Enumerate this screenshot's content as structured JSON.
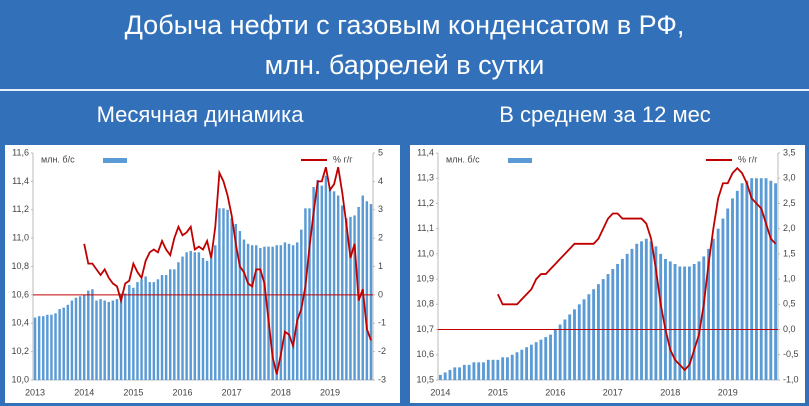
{
  "header": {
    "title_lines": [
      "Добыча нефти с газовым конденсатом в РФ,",
      "млн. баррелей в сутки"
    ]
  },
  "chart_data": [
    {
      "type": "combo",
      "title": "Месячная динамика",
      "categories": [
        "2013",
        null,
        null,
        null,
        null,
        null,
        null,
        null,
        null,
        null,
        null,
        null,
        "2014",
        null,
        null,
        null,
        null,
        null,
        null,
        null,
        null,
        null,
        null,
        null,
        "2015",
        null,
        null,
        null,
        null,
        null,
        null,
        null,
        null,
        null,
        null,
        null,
        "2016",
        null,
        null,
        null,
        null,
        null,
        null,
        null,
        null,
        null,
        null,
        null,
        "2017",
        null,
        null,
        null,
        null,
        null,
        null,
        null,
        null,
        null,
        null,
        null,
        "2018",
        null,
        null,
        null,
        null,
        null,
        null,
        null,
        null,
        null,
        null,
        null,
        "2019",
        null,
        null,
        null,
        null,
        null,
        null,
        null,
        null,
        null,
        null
      ],
      "series": [
        {
          "name": "млн. б/с",
          "color": "#5b9bd5",
          "axis": "y",
          "values": [
            10.44,
            10.45,
            10.45,
            10.46,
            10.46,
            10.47,
            10.5,
            10.51,
            10.53,
            10.56,
            10.58,
            10.59,
            10.6,
            10.63,
            10.64,
            10.56,
            10.57,
            10.56,
            10.55,
            10.56,
            10.57,
            10.61,
            10.61,
            10.67,
            10.65,
            10.69,
            10.71,
            10.73,
            10.69,
            10.69,
            10.71,
            10.74,
            10.74,
            10.78,
            10.78,
            10.83,
            10.87,
            10.9,
            10.91,
            10.9,
            10.9,
            10.86,
            10.84,
            10.86,
            10.95,
            11.21,
            11.21,
            11.2,
            11.14,
            11.1,
            11.05,
            10.99,
            10.96,
            10.95,
            10.95,
            10.93,
            10.94,
            10.94,
            10.94,
            10.95,
            10.95,
            10.97,
            10.96,
            10.95,
            10.97,
            11.06,
            11.21,
            11.21,
            11.36,
            11.41,
            11.37,
            11.44,
            11.36,
            11.33,
            11.3,
            11.23,
            11.14,
            11.15,
            11.16,
            11.22,
            11.3,
            11.26,
            11.24
          ]
        },
        {
          "name": "% г/г",
          "color": "#c00000",
          "axis": "y2",
          "values": [
            null,
            null,
            null,
            null,
            null,
            null,
            null,
            null,
            null,
            null,
            null,
            null,
            1.8,
            1.1,
            1.1,
            0.9,
            0.7,
            0.9,
            0.6,
            0.4,
            0.3,
            -0.2,
            0.4,
            0.5,
            1.1,
            0.8,
            0.6,
            1.2,
            1.5,
            1.6,
            1.5,
            1.9,
            1.6,
            1.4,
            2.0,
            2.4,
            2.1,
            2.2,
            2.4,
            1.6,
            1.7,
            1.6,
            1.9,
            1.3,
            2.4,
            4.3,
            4.0,
            3.5,
            2.8,
            1.8,
            1.0,
            0.8,
            0.4,
            0.3,
            0.9,
            0.9,
            0.4,
            -0.9,
            -2.2,
            -2.8,
            -2.1,
            -1.3,
            -1.4,
            -1.8,
            -0.9,
            -0.5,
            0.3,
            1.7,
            2.9,
            4.0,
            4.0,
            4.5,
            3.7,
            3.9,
            4.5,
            3.6,
            2.5,
            1.3,
            1.8,
            -0.2,
            0.2,
            -1.2,
            -1.6
          ]
        }
      ],
      "ylim": [
        10.0,
        11.6
      ],
      "yticks": [
        {
          "value": 10.0,
          "label": "10,0"
        },
        {
          "value": 10.2,
          "label": "10,2"
        },
        {
          "value": 10.4,
          "label": "10,4"
        },
        {
          "value": 10.6,
          "label": "10,6"
        },
        {
          "value": 10.8,
          "label": "10,8"
        },
        {
          "value": 11.0,
          "label": "11,0"
        },
        {
          "value": 11.2,
          "label": "11,2"
        },
        {
          "value": 11.4,
          "label": "11,4"
        },
        {
          "value": 11.6,
          "label": "11,6"
        }
      ],
      "y2lim": [
        -3,
        5
      ],
      "y2ticks": [
        -3,
        -2,
        -1,
        0,
        1,
        2,
        3,
        4,
        5
      ],
      "y2_zero_line": true,
      "grid": false
    },
    {
      "type": "combo",
      "title": "В среднем за 12 мес",
      "categories": [
        "2014",
        null,
        null,
        null,
        null,
        null,
        null,
        null,
        null,
        null,
        null,
        null,
        "2015",
        null,
        null,
        null,
        null,
        null,
        null,
        null,
        null,
        null,
        null,
        null,
        "2016",
        null,
        null,
        null,
        null,
        null,
        null,
        null,
        null,
        null,
        null,
        null,
        "2017",
        null,
        null,
        null,
        null,
        null,
        null,
        null,
        null,
        null,
        null,
        null,
        "2018",
        null,
        null,
        null,
        null,
        null,
        null,
        null,
        null,
        null,
        null,
        null,
        "2019",
        null,
        null,
        null,
        null,
        null,
        null,
        null,
        null,
        null,
        null
      ],
      "series": [
        {
          "name": "млн. б/с",
          "color": "#5b9bd5",
          "axis": "y",
          "values": [
            10.52,
            10.53,
            10.54,
            10.55,
            10.55,
            10.56,
            10.56,
            10.57,
            10.57,
            10.57,
            10.58,
            10.58,
            10.58,
            10.59,
            10.59,
            10.6,
            10.61,
            10.62,
            10.63,
            10.64,
            10.65,
            10.66,
            10.67,
            10.68,
            10.7,
            10.72,
            10.74,
            10.76,
            10.78,
            10.8,
            10.82,
            10.84,
            10.86,
            10.88,
            10.9,
            10.92,
            10.94,
            10.96,
            10.98,
            11.0,
            11.02,
            11.04,
            11.05,
            11.06,
            11.05,
            11.03,
            11.0,
            10.98,
            10.97,
            10.96,
            10.95,
            10.95,
            10.95,
            10.96,
            10.97,
            10.99,
            11.02,
            11.06,
            11.1,
            11.14,
            11.18,
            11.22,
            11.25,
            11.28,
            11.29,
            11.3,
            11.3,
            11.3,
            11.3,
            11.29,
            11.28
          ]
        },
        {
          "name": "% г/г",
          "color": "#c00000",
          "axis": "y2",
          "values": [
            null,
            null,
            null,
            null,
            null,
            null,
            null,
            null,
            null,
            null,
            null,
            null,
            0.7,
            0.5,
            0.5,
            0.5,
            0.5,
            0.6,
            0.7,
            0.8,
            1.0,
            1.1,
            1.1,
            1.2,
            1.3,
            1.4,
            1.5,
            1.6,
            1.7,
            1.7,
            1.7,
            1.7,
            1.7,
            1.8,
            2.0,
            2.2,
            2.3,
            2.3,
            2.2,
            2.2,
            2.2,
            2.2,
            2.2,
            2.1,
            1.8,
            1.2,
            0.5,
            0.0,
            -0.4,
            -0.6,
            -0.7,
            -0.8,
            -0.7,
            -0.4,
            -0.1,
            0.5,
            1.3,
            2.0,
            2.6,
            2.9,
            2.9,
            3.1,
            3.2,
            3.1,
            2.9,
            2.6,
            2.5,
            2.4,
            2.1,
            1.8,
            1.7
          ]
        }
      ],
      "ylim": [
        10.5,
        11.4
      ],
      "yticks": [
        {
          "value": 10.5,
          "label": "10,5"
        },
        {
          "value": 10.6,
          "label": "10,6"
        },
        {
          "value": 10.7,
          "label": "10,7"
        },
        {
          "value": 10.8,
          "label": "10,8"
        },
        {
          "value": 10.9,
          "label": "10,9"
        },
        {
          "value": 11.0,
          "label": "11,0"
        },
        {
          "value": 11.1,
          "label": "11,1"
        },
        {
          "value": 11.2,
          "label": "11,2"
        },
        {
          "value": 11.3,
          "label": "11,3"
        },
        {
          "value": 11.4,
          "label": "11,4"
        }
      ],
      "y2lim": [
        -1.0,
        3.5
      ],
      "y2ticks": [
        {
          "value": -1.0,
          "label": "-1,0"
        },
        {
          "value": -0.5,
          "label": "-0,5"
        },
        {
          "value": 0.0,
          "label": "0,0"
        },
        {
          "value": 0.5,
          "label": "0,5"
        },
        {
          "value": 1.0,
          "label": "1,0"
        },
        {
          "value": 1.5,
          "label": "1,5"
        },
        {
          "value": 2.0,
          "label": "2,0"
        },
        {
          "value": 2.5,
          "label": "2,5"
        },
        {
          "value": 3.0,
          "label": "3,0"
        },
        {
          "value": 3.5,
          "label": "3,5"
        }
      ],
      "y2_zero_line": true,
      "grid": false
    }
  ]
}
